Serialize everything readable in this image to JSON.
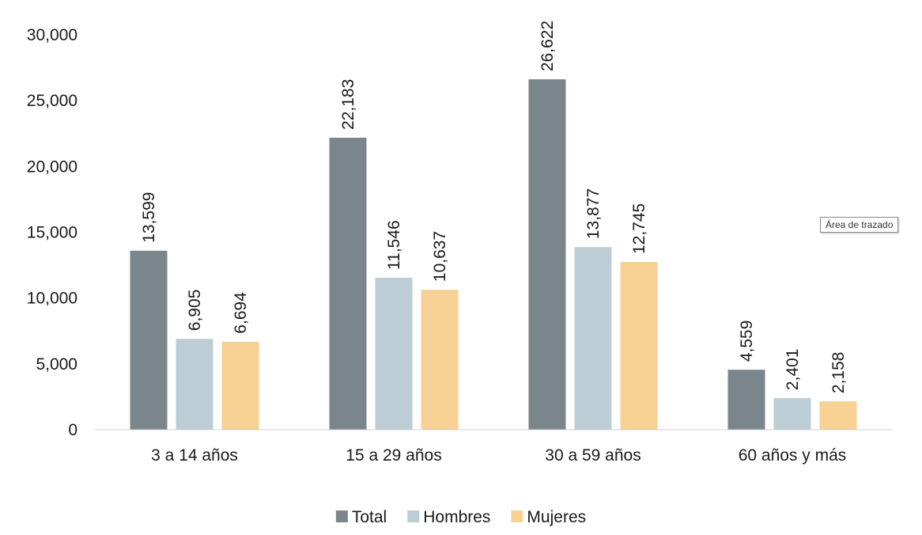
{
  "chart_data": {
    "type": "bar",
    "categories": [
      "3 a 14 años",
      "15 a 29 años",
      "30 a 59 años",
      "60 años y más"
    ],
    "series": [
      {
        "name": "Total",
        "color": "#7b868c",
        "values": [
          13599,
          22183,
          26622,
          4559
        ],
        "labels": [
          "13,599",
          "22,183",
          "26,622",
          "4,559"
        ]
      },
      {
        "name": "Hombres",
        "color": "#bccdd5",
        "values": [
          6905,
          11546,
          13877,
          2401
        ],
        "labels": [
          "6,905",
          "11,546",
          "13,877",
          "2,401"
        ]
      },
      {
        "name": "Mujeres",
        "color": "#f7d193",
        "values": [
          6694,
          10637,
          12745,
          2158
        ],
        "labels": [
          "6,694",
          "10,637",
          "12,745",
          "2,158"
        ]
      }
    ],
    "yticks": [
      0,
      5000,
      10000,
      15000,
      20000,
      25000,
      30000
    ],
    "ytick_labels": [
      "0",
      "5,000",
      "10,000",
      "15,000",
      "20,000",
      "25,000",
      "30,000"
    ],
    "ylim": [
      0,
      30000
    ],
    "grid": false,
    "legend_position": "bottom"
  },
  "tooltip": {
    "text": "Área de trazado"
  }
}
